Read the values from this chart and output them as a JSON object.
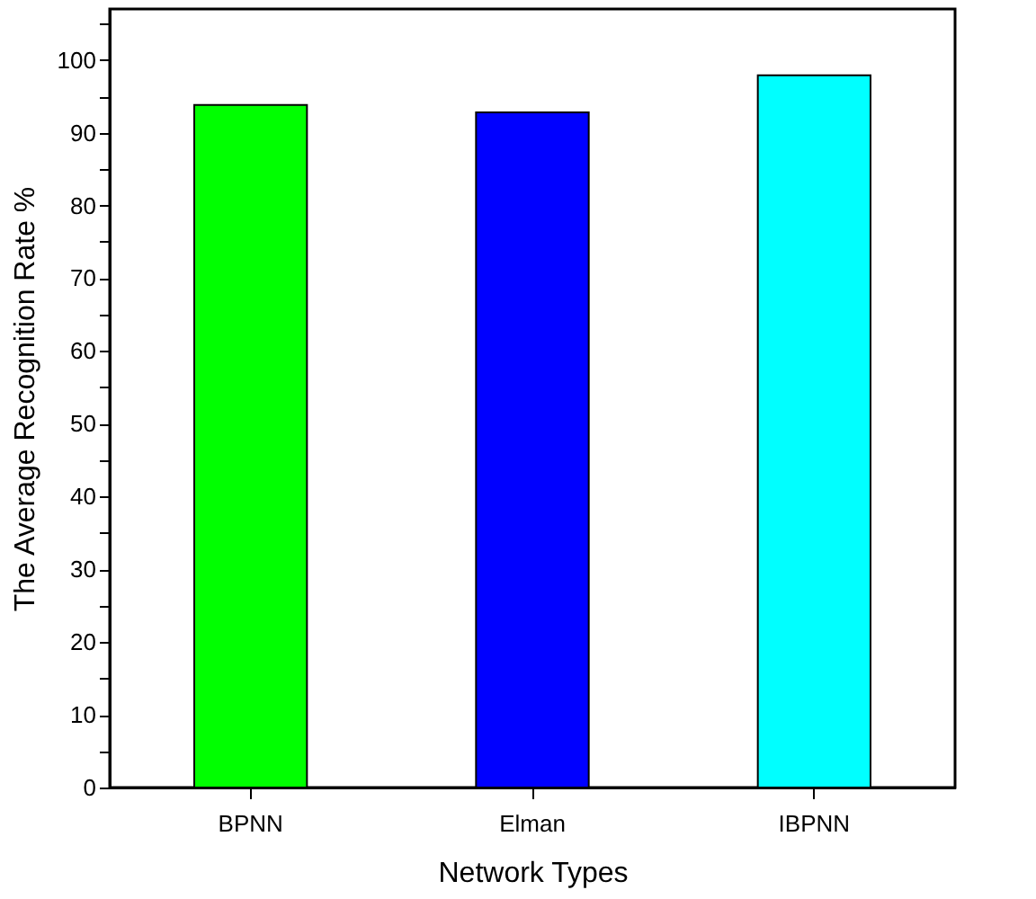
{
  "chart_data": {
    "type": "bar",
    "xlabel": "Network Types",
    "ylabel": "The Average Recognition Rate %",
    "categories": [
      "BPNN",
      "Elman",
      "IBPNN"
    ],
    "values": [
      93.8,
      92.8,
      97.9
    ],
    "colors": [
      "#00ff00",
      "#0000ff",
      "#00ffff"
    ],
    "ylim": [
      0,
      107
    ],
    "yticks": [
      0,
      {
        "value": 5,
        "label": null
      },
      10,
      {
        "value": 15,
        "label": null
      },
      20,
      {
        "value": 25,
        "label": null
      },
      30,
      {
        "value": 35,
        "label": null
      },
      40,
      {
        "value": 45,
        "label": null
      },
      50,
      {
        "value": 55,
        "label": null
      },
      60,
      {
        "value": 65,
        "label": null
      },
      70,
      {
        "value": 75,
        "label": null
      },
      80,
      {
        "value": 85,
        "label": null
      },
      90,
      {
        "value": 95,
        "label": null
      },
      100,
      {
        "value": 105,
        "label": null
      }
    ],
    "grid": false
  }
}
